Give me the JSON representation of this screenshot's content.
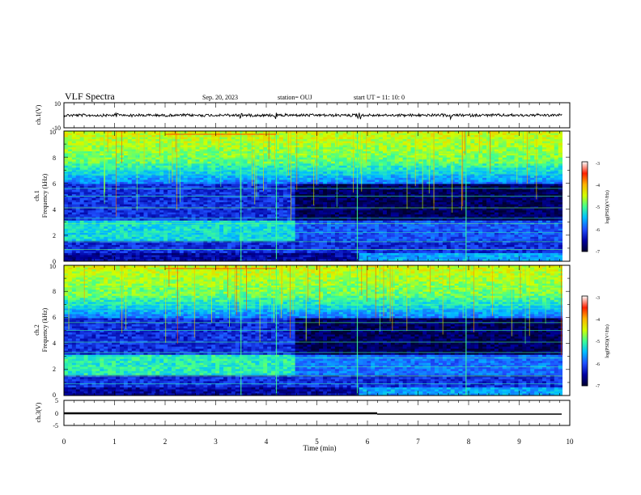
{
  "header": {
    "title": "VLF Spectra",
    "date": "Sep. 20, 2023",
    "station": "station= OUJ",
    "start": "start UT =   11: 10: 0"
  },
  "chart_data": [
    {
      "type": "line",
      "id": "ch1-waveform",
      "ylabel": "ch.1(V)",
      "xlim": [
        0,
        10
      ],
      "ylim": [
        -10,
        10
      ],
      "ytick_labels": [
        "10",
        "-10"
      ],
      "baseline": 0
    },
    {
      "type": "heatmap",
      "id": "ch1-spectrogram",
      "ylabel": "ch.1",
      "ylabel2": "Frequency (kHz)",
      "xlim": [
        0,
        10
      ],
      "ylim": [
        0,
        10
      ],
      "data_x_end": 9.85,
      "ytick_labels": [
        "0",
        "2",
        "4",
        "6",
        "8",
        "10"
      ],
      "colorbar": {
        "label": "log(PSD)(V²/Hz)",
        "range": [
          -7,
          -3
        ],
        "ticks": [
          "-3",
          "-4",
          "-5",
          "-6",
          "-7"
        ]
      }
    },
    {
      "type": "heatmap",
      "id": "ch2-spectrogram",
      "ylabel": "ch.2",
      "ylabel2": "Frequency (kHz)",
      "xlim": [
        0,
        10
      ],
      "ylim": [
        0,
        10
      ],
      "data_x_end": 9.85,
      "ytick_labels": [
        "0",
        "2",
        "4",
        "6",
        "8",
        "10"
      ],
      "colorbar": {
        "label": "log(PSD)(V²/Hz)",
        "range": [
          -7,
          -3
        ],
        "ticks": [
          "-3",
          "-4",
          "-5",
          "-6",
          "-7"
        ]
      }
    },
    {
      "type": "line",
      "id": "ch3-level",
      "ylabel": "ch.3(V)",
      "xlim": [
        0,
        10
      ],
      "ylim": [
        -5,
        5
      ],
      "ytick_labels": [
        "5",
        "0",
        "-5"
      ],
      "xlabel": "Time  (min)",
      "xtick_labels": [
        "0",
        "1",
        "2",
        "3",
        "4",
        "5",
        "6",
        "7",
        "8",
        "9",
        "10"
      ],
      "segments": [
        {
          "x": [
            0,
            6.2
          ],
          "y": 0,
          "weight": "thick"
        },
        {
          "x": [
            6.2,
            9.85
          ],
          "y": 0,
          "weight": "thin"
        }
      ]
    }
  ],
  "colors": {
    "colormap": [
      "#000030",
      "#0000a0",
      "#1f4fff",
      "#00c0ff",
      "#40ff90",
      "#d0ff00",
      "#ffb000",
      "#ff2000",
      "#ffffff"
    ]
  }
}
